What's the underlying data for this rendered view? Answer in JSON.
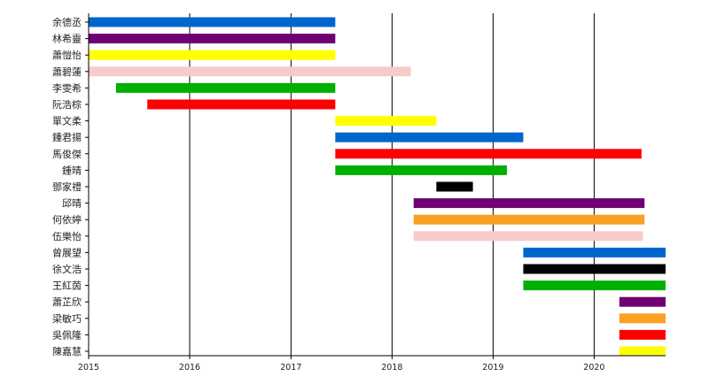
{
  "chart_data": {
    "type": "timeline",
    "x_axis": {
      "type": "date",
      "range": [
        "2015-01-01",
        "2020-09-15"
      ],
      "tick_labels": [
        "2015",
        "2016",
        "2017",
        "2018",
        "2019",
        "2020"
      ],
      "vertical_grid": true
    },
    "colors": {
      "blue": "#0066cc",
      "purple": "#6f0074",
      "yellow": "#ffff00",
      "pink": "#f8cbcb",
      "green": "#00b000",
      "red": "#ff0000",
      "orange": "#f8a024",
      "black": "#000000"
    },
    "rows": [
      {
        "label": "余德丞",
        "start": "2015-01-01",
        "end": "2017-06-10",
        "color": "blue"
      },
      {
        "label": "林希靈",
        "start": "2015-01-01",
        "end": "2017-06-10",
        "color": "purple"
      },
      {
        "label": "蕭愷怡",
        "start": "2015-01-01",
        "end": "2017-06-10",
        "color": "yellow"
      },
      {
        "label": "蕭碧蓮",
        "start": "2015-01-01",
        "end": "2018-03-10",
        "color": "pink"
      },
      {
        "label": "李雯希",
        "start": "2015-04-10",
        "end": "2017-06-10",
        "color": "green"
      },
      {
        "label": "阮浩棕",
        "start": "2015-08-01",
        "end": "2017-06-10",
        "color": "red"
      },
      {
        "label": "單文柔",
        "start": "2017-06-10",
        "end": "2018-06-10",
        "color": "yellow"
      },
      {
        "label": "鍾君揚",
        "start": "2017-06-10",
        "end": "2019-04-20",
        "color": "blue"
      },
      {
        "label": "馬俊傑",
        "start": "2017-06-10",
        "end": "2020-06-20",
        "color": "red"
      },
      {
        "label": "鍾晴",
        "start": "2017-06-10",
        "end": "2019-02-20",
        "color": "green"
      },
      {
        "label": "鄧家禮",
        "start": "2018-06-10",
        "end": "2018-10-20",
        "color": "black"
      },
      {
        "label": "邱晴",
        "start": "2018-03-20",
        "end": "2020-07-01",
        "color": "purple"
      },
      {
        "label": "何依婷",
        "start": "2018-03-20",
        "end": "2020-07-01",
        "color": "orange"
      },
      {
        "label": "伍樂怡",
        "start": "2018-03-20",
        "end": "2020-06-25",
        "color": "pink"
      },
      {
        "label": "曾展望",
        "start": "2019-04-20",
        "end": "2020-09-15",
        "color": "blue"
      },
      {
        "label": "徐文浩",
        "start": "2019-04-20",
        "end": "2020-09-15",
        "color": "black"
      },
      {
        "label": "王紅茵",
        "start": "2019-04-20",
        "end": "2020-09-15",
        "color": "green"
      },
      {
        "label": "蕭芷欣",
        "start": "2020-04-01",
        "end": "2020-09-15",
        "color": "purple"
      },
      {
        "label": "梁敏巧",
        "start": "2020-04-01",
        "end": "2020-09-15",
        "color": "orange"
      },
      {
        "label": "吳佩隆",
        "start": "2020-04-01",
        "end": "2020-09-15",
        "color": "red"
      },
      {
        "label": "陳嘉慧",
        "start": "2020-04-01",
        "end": "2020-09-15",
        "color": "yellow"
      }
    ]
  }
}
